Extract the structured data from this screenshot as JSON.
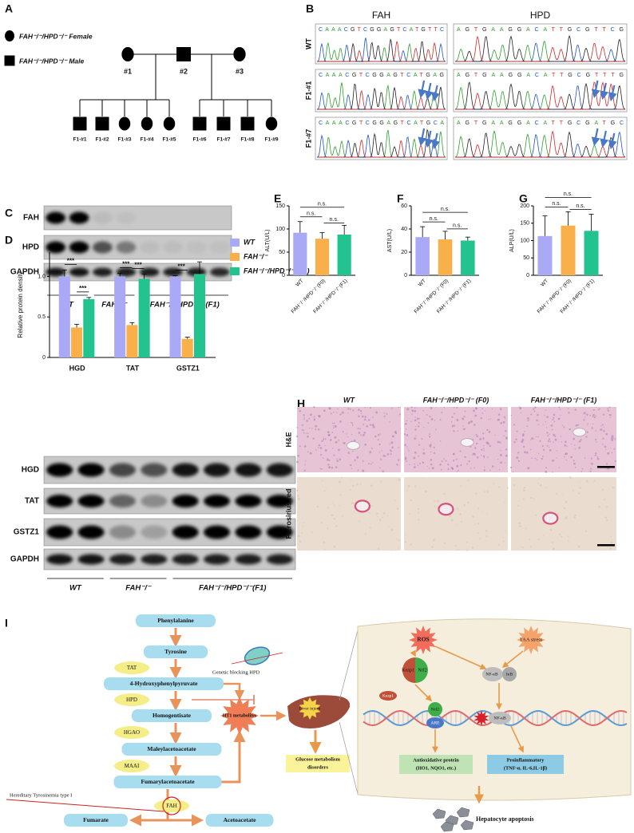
{
  "figure": {
    "letters": [
      "A",
      "B",
      "C",
      "D",
      "E",
      "F",
      "G",
      "H",
      "I"
    ],
    "A": {
      "legend": [
        "FAH⁻/⁻/HPD⁻/⁻ Female",
        "FAH⁻/⁻/HPD⁻/⁻ Male"
      ],
      "parents": [
        "#1",
        "#2",
        "#3"
      ],
      "children": [
        "F1-#1",
        "F1-#2",
        "F1-#3",
        "F1-#4",
        "F1-#5",
        "F1-#6",
        "F1-#7",
        "F1-#8",
        "F1-#9"
      ]
    },
    "B": {
      "genes": [
        "FAH",
        "HPD"
      ],
      "rows": [
        "WT",
        "F1-#1",
        "F1-#7"
      ],
      "sequences": [
        [
          "CAAACGTCGGAGTCATGTTC",
          "AGTGAAGGACATTGCGTTCG"
        ],
        [
          "CAAACGTCGGAGTCATGAG",
          "AGTGAAGGACATTGCGTTTG"
        ],
        [
          "CAAACGTCGGAGTCATGCA",
          "AGTGAAGGACATTGCGATGC"
        ]
      ]
    },
    "C": {
      "proteins": [
        "FAH",
        "HPD",
        "GAPDH"
      ],
      "groups": [
        "WT",
        "FAH⁻/⁻",
        "FAH⁻/⁻/HPD⁻/⁻ (F1)"
      ]
    },
    "D": {
      "proteins": [
        "HGD",
        "TAT",
        "GSTZ1",
        "GAPDH"
      ],
      "groups": [
        "WT",
        "FAH⁻/⁻",
        "FAH⁻/⁻/HPD⁻/⁻(F1)"
      ]
    },
    "H": {
      "groups": [
        "WT",
        "FAH⁻/⁻/HPD⁻/⁻ (F0)",
        "FAH⁻/⁻/HPD⁻/⁻ (F1)"
      ],
      "stains": [
        "H&E",
        "Picrosirius red"
      ]
    },
    "I": {
      "pathway": [
        "Phenylalanine",
        "Tyrosine",
        "4-Hydroxyphenylpyruvate",
        "Homogentisate",
        "Maleylacetoacetate",
        "Fumarylacetoacetate",
        "Fumarate",
        "Acetoacetate"
      ],
      "enzymes": [
        "TAT",
        "HPD",
        "HGAO",
        "MAAI",
        "FAH"
      ],
      "disease": "Hereditary Tyrosinemia type I",
      "blocking": "Genetic blocking HPD",
      "metabolites": "HT1 metabolites",
      "liver": "Liver injury",
      "glucose": [
        "Glucose metabolism",
        "disorders"
      ],
      "stress": [
        "ROS",
        "TAA stress"
      ],
      "complex": [
        "Keap1",
        "Nrf2"
      ],
      "keap1": "Keap1",
      "nfkb_complex": [
        "NF-κB",
        "IκB"
      ],
      "nuclear": [
        "Nrf2",
        "ARE",
        "NF-κB"
      ],
      "outcomes": [
        [
          "Antioxidative protein",
          "(HO1, NQO1, etc.)"
        ],
        [
          "Proinflammatory",
          "(TNF-α, IL-6,IL-1β)"
        ]
      ],
      "apoptosis": "Hepatocyte apoptosis"
    }
  },
  "chart_data": [
    {
      "type": "bar",
      "y_label": "Relative protein density",
      "categories": [
        "HGD",
        "TAT",
        "GSTZ1"
      ],
      "series": [
        {
          "name": "WT",
          "color": "#a9a9f5",
          "values": [
            1.0,
            1.0,
            1.0
          ],
          "errors": [
            0.08,
            0.04,
            0.01
          ]
        },
        {
          "name": "FAH⁻/⁻",
          "color": "#f9b04a",
          "values": [
            0.37,
            0.4,
            0.23
          ],
          "errors": [
            0.04,
            0.03,
            0.02
          ]
        },
        {
          "name": "FAH⁻/⁻/HPD⁻/⁻ (F1)",
          "color": "#22c38e",
          "values": [
            0.72,
            0.97,
            1.03
          ],
          "errors": [
            0.02,
            0.06,
            0.15
          ]
        }
      ],
      "ylim": [
        0,
        1.3
      ],
      "yticks": [
        0,
        0.5,
        {
          "value": 1,
          "label": "1.0"
        }
      ],
      "legend": "right",
      "annotations": [
        "***",
        "***",
        "***",
        "***",
        "***"
      ]
    },
    {
      "type": "bar",
      "y_label": "ALT(U/L)",
      "categories": [
        "WT",
        "FAH⁻/⁻/HPD⁻/⁻(F0)",
        "FAH⁻/⁻/HPD⁻/⁻(F1)"
      ],
      "colors": [
        "#a9a9f5",
        "#f9b04a",
        "#22c38e"
      ],
      "values": [
        92,
        79,
        88
      ],
      "errors": [
        24,
        13,
        20
      ],
      "ylim": [
        0,
        150
      ],
      "yticks": [
        0,
        50,
        100,
        150
      ],
      "annotations": [
        "n.s.",
        "n.s.",
        "n.s."
      ]
    },
    {
      "type": "bar",
      "y_label": "AST(U/L)",
      "categories": [
        "WT",
        "FAH⁻/⁻/HPD⁻/⁻(F0)",
        "FAH⁻/⁻/HPD⁻/⁻(F1)"
      ],
      "colors": [
        "#a9a9f5",
        "#f9b04a",
        "#22c38e"
      ],
      "values": [
        33,
        31,
        30
      ],
      "errors": [
        9,
        7,
        3
      ],
      "ylim": [
        0,
        60
      ],
      "yticks": [
        0,
        20,
        40,
        60
      ],
      "annotations": [
        "n.s.",
        "n.s.",
        "n.s."
      ]
    },
    {
      "type": "bar",
      "y_label": "ALP(U/L)",
      "categories": [
        "WT",
        "FAH⁻/⁻/HPD⁻/⁻(F0)",
        "FAH⁻/⁻/HPD⁻/⁻(F1)"
      ],
      "colors": [
        "#a9a9f5",
        "#f9b04a",
        "#22c38e"
      ],
      "values": [
        113,
        143,
        128
      ],
      "errors": [
        58,
        40,
        48
      ],
      "ylim": [
        0,
        200
      ],
      "yticks": [
        0,
        50,
        100,
        150,
        200
      ],
      "annotations": [
        "n.s.",
        "n.s.",
        "n.s."
      ]
    }
  ]
}
